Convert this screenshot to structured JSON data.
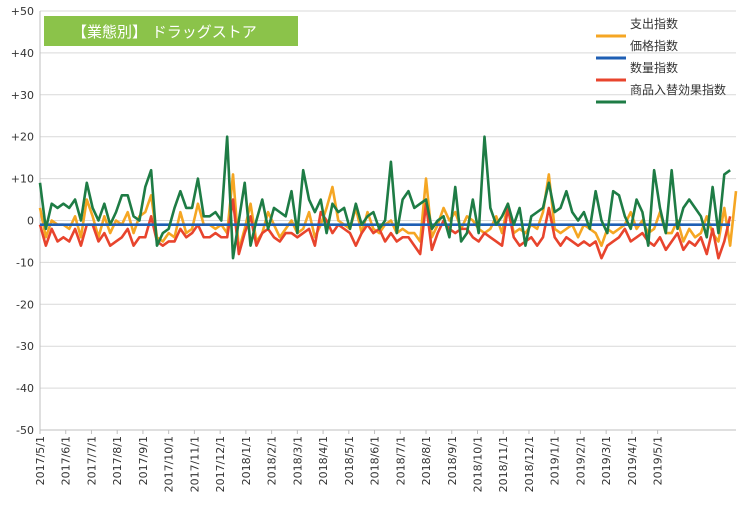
{
  "chart_data": {
    "type": "line",
    "title": "【業態別】 ドラッグストア",
    "title_box_color": "#8bc34a",
    "ylim": [
      -50,
      50
    ],
    "yticks": [
      50,
      40,
      30,
      20,
      10,
      0,
      -10,
      -20,
      -30,
      -40,
      -50
    ],
    "ytick_labels": [
      "+50",
      "+40",
      "+30",
      "+20",
      "+10",
      "0",
      "-10",
      "-20",
      "-30",
      "-40",
      "-50"
    ],
    "xtick_labels": [
      "2017/5/1",
      "2017/6/1",
      "2017/7/1",
      "2017/8/1",
      "2017/9/1",
      "2017/10/1",
      "2017/11/1",
      "2017/12/1",
      "2018/1/1",
      "2018/2/1",
      "2018/3/1",
      "2018/4/1",
      "2018/5/1",
      "2018/6/1",
      "2018/7/1",
      "2018/8/1",
      "2018/9/1",
      "2018/10/1",
      "2018/11/1",
      "2018/12/1",
      "2019/1/1",
      "2019/2/1",
      "2019/3/1",
      "2019/4/1",
      "2019/5/1"
    ],
    "x_start": "2017/5/1",
    "points_per_label": 4.4,
    "grid": "horizontal",
    "legend_position": "top-right",
    "series": [
      {
        "name": "支出指数",
        "color": "#f5a623",
        "values": [
          3,
          -4,
          0,
          -1,
          -1,
          -2,
          1,
          -4,
          5,
          1,
          -4,
          1,
          -3,
          0,
          -1,
          2,
          -3,
          1,
          2,
          6,
          -4,
          -5,
          -3,
          -4,
          2,
          -3,
          -2,
          4,
          -1,
          -1,
          -2,
          -1,
          -3,
          11,
          -7,
          -2,
          4,
          -5,
          -3,
          2,
          -1,
          -4,
          -2,
          0,
          -3,
          -2,
          2,
          -4,
          -1,
          3,
          8,
          0,
          -1,
          -2,
          3,
          -3,
          2,
          -2,
          -3,
          -1,
          0,
          -3,
          -2,
          -3,
          -3,
          -5,
          10,
          -4,
          -1,
          3,
          0,
          2,
          -2,
          1,
          0,
          -2,
          -3,
          -2,
          1,
          -3,
          4,
          -3,
          -2,
          -3,
          -1,
          -2,
          2,
          11,
          -2,
          -3,
          -2,
          -1,
          -4,
          -1,
          -2,
          -3,
          -6,
          -2,
          -3,
          -2,
          -1,
          2,
          -2,
          0,
          -3,
          -2,
          2,
          -3,
          -3,
          0,
          -5,
          -2,
          -4,
          -3,
          1,
          -3,
          -5,
          3,
          -6,
          7
        ]
      },
      {
        "name": "価格指数",
        "color": "#1f5fb4",
        "values": [
          -1,
          -1,
          -1,
          -1,
          -1,
          -1,
          -1,
          -1,
          -1,
          -1,
          -1,
          -1,
          -1,
          -1,
          -1,
          -1,
          -1,
          -1,
          -1,
          -1,
          -1,
          -1,
          -1,
          -1,
          -1,
          -1,
          -1,
          -1,
          -1,
          -1,
          -1,
          -1,
          -1,
          -1,
          -1,
          -1,
          -1,
          -1,
          -1,
          -1,
          -1,
          -1,
          -1,
          -1,
          -1,
          -1,
          -1,
          -1,
          -1,
          -1,
          -1,
          -1,
          -1,
          -1,
          -1,
          -1,
          -1,
          -1,
          -1,
          -1,
          -1,
          -1,
          -1,
          -1,
          -1,
          -1,
          -1,
          -1,
          -1,
          -1,
          -1,
          -1,
          -1,
          -1,
          -1,
          -1,
          -1,
          -1,
          -1,
          -1,
          -1,
          -1,
          -1,
          -1,
          -1,
          -1,
          -1,
          -1,
          -1,
          -1,
          -1,
          -1,
          -1,
          -1,
          -1,
          -1,
          -1,
          -1,
          -1,
          -1,
          -1,
          -1,
          -1,
          -1,
          -1,
          -1,
          -1,
          -1,
          -1,
          -1,
          -1,
          -1,
          -1,
          -1,
          -1,
          -1,
          -1,
          -1,
          -1
        ]
      },
      {
        "name": "数量指数",
        "color": "#e8442d",
        "values": [
          -1,
          -6,
          -2,
          -5,
          -4,
          -5,
          -2,
          -6,
          -1,
          -1,
          -5,
          -3,
          -6,
          -5,
          -4,
          -2,
          -6,
          -4,
          -4,
          1,
          -5,
          -6,
          -5,
          -5,
          -2,
          -4,
          -3,
          -1,
          -4,
          -4,
          -3,
          -4,
          -4,
          5,
          -8,
          -3,
          1,
          -6,
          -3,
          -2,
          -4,
          -5,
          -3,
          -3,
          -4,
          -3,
          -2,
          -6,
          2,
          0,
          -3,
          -1,
          -2,
          -3,
          -6,
          -3,
          -1,
          -3,
          -2,
          -5,
          -3,
          -5,
          -4,
          -4,
          -6,
          -8,
          4,
          -7,
          -3,
          0,
          -2,
          -3,
          -2,
          -2,
          -4,
          -5,
          -3,
          -4,
          -5,
          -6,
          3,
          -4,
          -6,
          -5,
          -4,
          -6,
          -4,
          3,
          -4,
          -6,
          -4,
          -5,
          -6,
          -5,
          -6,
          -5,
          -9,
          -6,
          -5,
          -4,
          -2,
          -5,
          -4,
          -3,
          -5,
          -6,
          -4,
          -7,
          -5,
          -3,
          -7,
          -5,
          -6,
          -4,
          -8,
          -2,
          -9,
          -5,
          1
        ]
      },
      {
        "name": "商品入替効果指数",
        "color": "#1e7c45",
        "values": [
          9,
          -2,
          4,
          3,
          4,
          3,
          5,
          0,
          9,
          3,
          0,
          4,
          -1,
          2,
          6,
          6,
          1,
          0,
          8,
          12,
          -6,
          -3,
          -2,
          3,
          7,
          3,
          3,
          10,
          1,
          1,
          2,
          0,
          20,
          -9,
          0,
          9,
          -6,
          0,
          5,
          -2,
          3,
          2,
          1,
          7,
          -3,
          12,
          5,
          2,
          5,
          -3,
          4,
          2,
          3,
          -2,
          4,
          -1,
          1,
          2,
          -2,
          0,
          14,
          -3,
          5,
          7,
          3,
          4,
          5,
          -2,
          0,
          1,
          -4,
          8,
          -5,
          -3,
          5,
          -3,
          20,
          3,
          -1,
          1,
          4,
          -1,
          3,
          -6,
          1,
          2,
          3,
          9,
          2,
          3,
          7,
          2,
          0,
          2,
          -2,
          7,
          0,
          -3,
          7,
          6,
          1,
          -2,
          5,
          2,
          -6,
          12,
          3,
          -3,
          12,
          -2,
          3,
          5,
          3,
          1,
          -4,
          8,
          -3,
          11,
          12
        ]
      }
    ]
  }
}
